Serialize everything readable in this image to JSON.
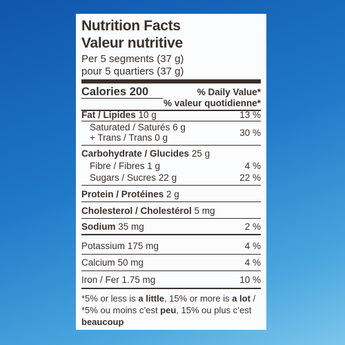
{
  "header": {
    "title": "Nutrition Facts",
    "title_fr": "Valeur nutritive",
    "serving": "Per 5 segments (37 g)",
    "serving_fr": "pour 5 quartiers (37 g)"
  },
  "calories": {
    "label": "Calories 200",
    "daily_value": "% Daily Value*",
    "daily_value_fr": "% valeur quotidienne*"
  },
  "nutrients": [
    {
      "label": "Fat / Lipides",
      "amount": "10 g",
      "dv": "13 %"
    },
    {
      "label": "Saturated / Saturés",
      "amount": "6 g",
      "dv": "30 %"
    },
    {
      "label": "+ Trans / Trans",
      "amount": "0 g"
    },
    {
      "label": "Carbohydrate / Glucides",
      "amount": "25 g"
    },
    {
      "label": "Fibre / Fibres",
      "amount": "1 g",
      "dv": "4 %"
    },
    {
      "label": "Sugars / Sucres",
      "amount": "22 g",
      "dv": "22 %"
    },
    {
      "label": "Protein / Protéines",
      "amount": "2 g"
    },
    {
      "label": "Cholesterol / Cholestérol",
      "amount": "5 mg"
    },
    {
      "label": "Sodium",
      "amount": "35 mg",
      "dv": "2 %"
    },
    {
      "label": "Potassium",
      "amount": "175 mg",
      "dv": "4 %"
    },
    {
      "label": "Calcium",
      "amount": "50 mg",
      "dv": "4 %"
    },
    {
      "label": "Iron / Fer",
      "amount": "1.75 mg",
      "dv": "10 %"
    }
  ],
  "footnote": [
    "*5% or less is ",
    "a little",
    ", 15% or more is ",
    "a lot",
    " / *5% ou moins c’est ",
    "peu",
    ", 15% ou plus c’est ",
    "beaucoup"
  ]
}
